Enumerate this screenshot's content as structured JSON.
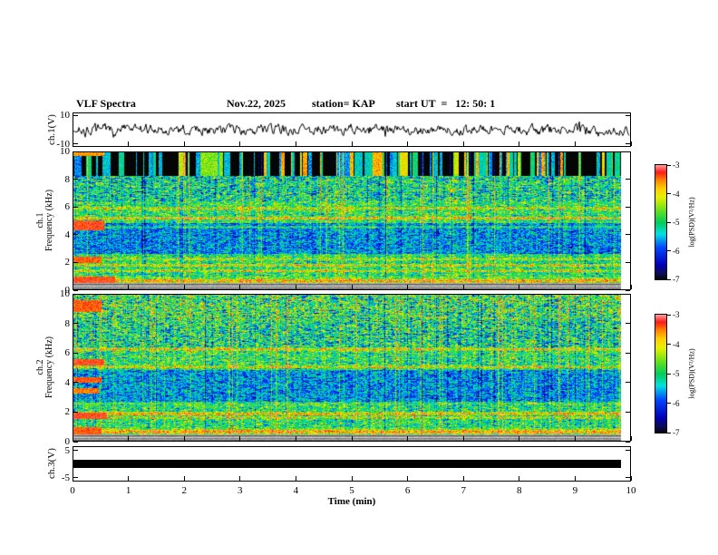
{
  "header": {
    "title": "VLF Spectra",
    "date": "Nov.22, 2025",
    "station": "station= KAP",
    "start_ut": "start UT  =   12: 50: 1"
  },
  "xaxis": {
    "label": "Time (min)",
    "lim": [
      0,
      10
    ],
    "ticks": [
      0,
      1,
      2,
      3,
      4,
      5,
      6,
      7,
      8,
      9,
      10
    ]
  },
  "colorbar": {
    "label": "log(PSD)(V²/Hz)",
    "lim": [
      -7,
      -3
    ],
    "ticks": [
      -3,
      -4,
      -5,
      -6,
      -7
    ]
  },
  "colormap_stops": [
    [
      0,
      [
        5,
        5,
        5
      ]
    ],
    [
      0.06,
      [
        12,
        12,
        95
      ]
    ],
    [
      0.13,
      [
        0,
        0,
        185
      ]
    ],
    [
      0.28,
      [
        0,
        70,
        255
      ]
    ],
    [
      0.4,
      [
        0,
        225,
        225
      ]
    ],
    [
      0.5,
      [
        0,
        205,
        90
      ]
    ],
    [
      0.6,
      [
        95,
        225,
        30
      ]
    ],
    [
      0.72,
      [
        230,
        240,
        0
      ]
    ],
    [
      0.8,
      [
        255,
        205,
        0
      ]
    ],
    [
      0.88,
      [
        255,
        120,
        0
      ]
    ],
    [
      0.94,
      [
        255,
        25,
        25
      ]
    ],
    [
      1,
      [
        255,
        150,
        150
      ]
    ]
  ],
  "chart_data": [
    {
      "type": "line",
      "name": "ch1_waveform",
      "ylabel": "ch.1(V)",
      "ylim": [
        -10,
        10
      ],
      "yticks": [
        10,
        -10
      ],
      "xlim": [
        0,
        10
      ],
      "seed": 7,
      "description": "broadband noisy voltage trace around 0 V, typical excursions ±3-6 V with burst envelopes"
    },
    {
      "type": "heatmap",
      "name": "ch1_spectrogram",
      "ylabel_ch": "ch.1",
      "ylabel_freq": "Frequency (kHz)",
      "ylim": [
        0,
        10
      ],
      "yticks": [
        10,
        8,
        6,
        4,
        2,
        0
      ],
      "zlim": [
        -7,
        -3
      ],
      "seed": 11,
      "t_end": 9.84,
      "bands": [
        {
          "f": [
            8.25,
            10
          ],
          "base": -5.9,
          "noise": 0.7,
          "stripe": 0.9,
          "dense": 1.5
        },
        {
          "f": [
            6.4,
            8.25
          ],
          "base": -5.1,
          "noise": 0.85,
          "stripe": 0.9
        },
        {
          "f": [
            4.85,
            6.4
          ],
          "base": -4.85,
          "noise": 0.7,
          "stripe": 0.7
        },
        {
          "f": [
            2.55,
            4.85
          ],
          "base": -5.65,
          "noise": 0.6,
          "stripe": 0.6
        },
        {
          "f": [
            0.9,
            2.55
          ],
          "base": -4.95,
          "noise": 0.7,
          "stripe": 0.6
        },
        {
          "f": [
            0.45,
            0.9
          ],
          "base": -4.6,
          "noise": 0.6,
          "stripe": 0.5
        },
        {
          "f": [
            0,
            0.45
          ],
          "gray": true
        }
      ],
      "hlines": [
        {
          "f": 5.2,
          "w": 0.12,
          "boost": 1.1
        },
        {
          "f": 5.9,
          "w": 0.1,
          "boost": 0.9
        },
        {
          "f": 4.55,
          "w": 0.1,
          "boost": 0.7
        },
        {
          "f": 2.2,
          "w": 0.1,
          "boost": 0.7
        },
        {
          "f": 1.75,
          "w": 0.12,
          "boost": 1.0
        },
        {
          "f": 1.35,
          "w": 0.1,
          "boost": 0.9
        },
        {
          "f": 0.62,
          "w": 0.14,
          "boost": 1.1
        }
      ],
      "blobs": [
        {
          "f": [
            4.3,
            5.0
          ],
          "t": [
            0,
            0.55
          ],
          "v": -3.3
        },
        {
          "f": [
            1.95,
            2.4
          ],
          "t": [
            0,
            0.5
          ],
          "v": -3.4
        },
        {
          "f": [
            0.45,
            0.95
          ],
          "t": [
            0,
            0.75
          ],
          "v": -3.3
        },
        {
          "f": [
            9.72,
            10
          ],
          "t": [
            0,
            0.55
          ],
          "v": -3.6
        }
      ]
    },
    {
      "type": "heatmap",
      "name": "ch2_spectrogram",
      "ylabel_ch": "ch.2",
      "ylabel_freq": "Frequency (kHz)",
      "ylim": [
        0,
        10
      ],
      "yticks": [
        10,
        8,
        6,
        4,
        2,
        0
      ],
      "zlim": [
        -7,
        -3
      ],
      "seed": 23,
      "t_end": 9.84,
      "bands": [
        {
          "f": [
            8.25,
            10
          ],
          "base": -4.85,
          "noise": 0.95,
          "stripe": 0.7,
          "speckle": 0.02
        },
        {
          "f": [
            6.4,
            8.25
          ],
          "base": -5.05,
          "noise": 0.9,
          "stripe": 0.8
        },
        {
          "f": [
            4.85,
            6.4
          ],
          "base": -4.9,
          "noise": 0.75,
          "stripe": 0.7
        },
        {
          "f": [
            2.55,
            4.85
          ],
          "base": -5.6,
          "noise": 0.6,
          "stripe": 0.6
        },
        {
          "f": [
            0.9,
            2.55
          ],
          "base": -4.95,
          "noise": 0.7,
          "stripe": 0.6
        },
        {
          "f": [
            0.45,
            0.9
          ],
          "base": -4.55,
          "noise": 0.6,
          "stripe": 0.5
        },
        {
          "f": [
            0,
            0.45
          ],
          "gray": true
        }
      ],
      "hlines": [
        {
          "f": 6.25,
          "w": 0.12,
          "boost": 1.0
        },
        {
          "f": 5.05,
          "w": 0.1,
          "boost": 0.9
        },
        {
          "f": 2.6,
          "w": 0.1,
          "boost": 0.6
        },
        {
          "f": 1.85,
          "w": 0.14,
          "boost": 1.3
        },
        {
          "f": 1.6,
          "w": 0.1,
          "boost": 0.9
        },
        {
          "f": 0.62,
          "w": 0.14,
          "boost": 1.1
        }
      ],
      "blobs": [
        {
          "f": [
            8.8,
            9.6
          ],
          "t": [
            0,
            0.5
          ],
          "v": -3.4
        },
        {
          "f": [
            5.15,
            5.6
          ],
          "t": [
            0,
            0.55
          ],
          "v": -3.3
        },
        {
          "f": [
            3.95,
            4.35
          ],
          "t": [
            0,
            0.5
          ],
          "v": -3.4
        },
        {
          "f": [
            3.25,
            3.6
          ],
          "t": [
            0,
            0.45
          ],
          "v": -3.5
        },
        {
          "f": [
            1.5,
            1.95
          ],
          "t": [
            0,
            0.6
          ],
          "v": -3.3
        },
        {
          "f": [
            0.45,
            0.95
          ],
          "t": [
            0,
            0.5
          ],
          "v": -3.4
        }
      ]
    },
    {
      "type": "line",
      "name": "ch3_waveform",
      "ylabel": "ch.3(V)",
      "ylim": [
        -5,
        5
      ],
      "yticks": [
        5,
        -5
      ],
      "xlim": [
        0,
        10
      ],
      "bar": {
        "t": [
          0,
          9.84
        ],
        "halfwidth_v": 1.1
      },
      "description": "saturated / clipped channel drawn as a solid black band at 0 V"
    }
  ]
}
